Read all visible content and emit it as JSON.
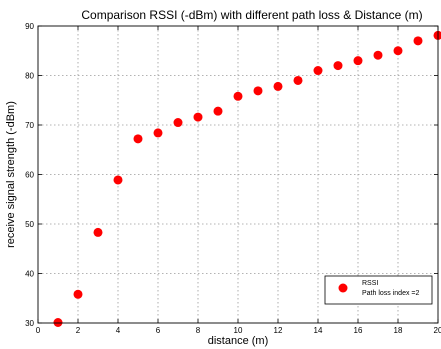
{
  "chart_data": {
    "type": "scatter",
    "title": "Comparison RSSI (-dBm) with different path loss & Distance (m)",
    "xlabel": "distance (m)",
    "ylabel": "receive signal strength (-dBm)",
    "xlim": [
      0,
      20
    ],
    "ylim": [
      30,
      90
    ],
    "xticks": [
      0,
      2,
      4,
      6,
      8,
      10,
      12,
      14,
      16,
      18,
      20
    ],
    "yticks": [
      30,
      40,
      50,
      60,
      70,
      80,
      90
    ],
    "grid": true,
    "legend_position": "bottom-right",
    "series": [
      {
        "name": "RSSI",
        "legend_subtitle": "Path loss index =2",
        "color": "#ff0000",
        "marker": "circle",
        "x": [
          1,
          2,
          3,
          4,
          5,
          6,
          7,
          8,
          9,
          10,
          11,
          12,
          13,
          14,
          15,
          16,
          17,
          18,
          19,
          20
        ],
        "y": [
          30.1,
          35.8,
          48.3,
          58.9,
          67.2,
          68.4,
          70.5,
          71.6,
          72.8,
          75.8,
          76.9,
          77.8,
          79.0,
          81.0,
          82.0,
          83.0,
          84.1,
          85.0,
          87.0,
          88.1
        ]
      }
    ]
  }
}
